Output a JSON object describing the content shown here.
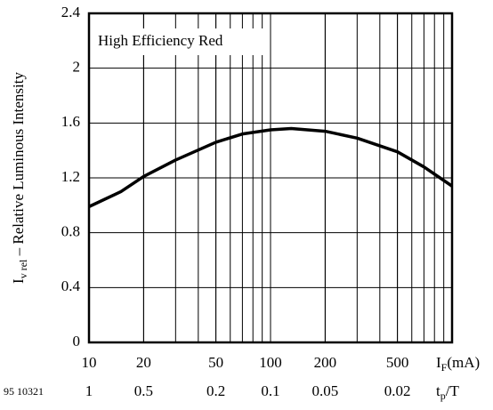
{
  "chart_data": {
    "type": "line",
    "annotation": "High Efficiency Red",
    "figure_id": "95 10321",
    "ylabel": {
      "symbol": "I",
      "subscript": "v rel",
      "text": " – Relative Luminous Intensity"
    },
    "xlabel": {
      "symbol": "I",
      "subscript": "F",
      "text": "(mA)"
    },
    "x2label": {
      "symbol": "t",
      "subscript": "p",
      "text": "/T"
    },
    "x_log": true,
    "minor_grid": true,
    "grid": true,
    "xlim": [
      10,
      1000
    ],
    "ylim": [
      0,
      2.4
    ],
    "xticks": [
      10,
      20,
      50,
      100,
      200,
      500
    ],
    "x2ticks": [
      {
        "value": 10,
        "label": "1"
      },
      {
        "value": 20,
        "label": "0.5"
      },
      {
        "value": 50,
        "label": "0.2"
      },
      {
        "value": 100,
        "label": "0.1"
      },
      {
        "value": 200,
        "label": "0.05"
      },
      {
        "value": 500,
        "label": "0.02"
      }
    ],
    "yticks": [
      {
        "value": 0,
        "label": "0"
      },
      0.4,
      0.8,
      1.2,
      1.6,
      2.0,
      2.4
    ],
    "x": [
      10,
      15,
      20,
      30,
      50,
      70,
      100,
      130,
      200,
      300,
      500,
      700,
      1000
    ],
    "series": [
      {
        "color": "#000000",
        "values": [
          0.99,
          1.1,
          1.21,
          1.33,
          1.46,
          1.52,
          1.55,
          1.56,
          1.54,
          1.49,
          1.39,
          1.28,
          1.14
        ]
      }
    ]
  }
}
